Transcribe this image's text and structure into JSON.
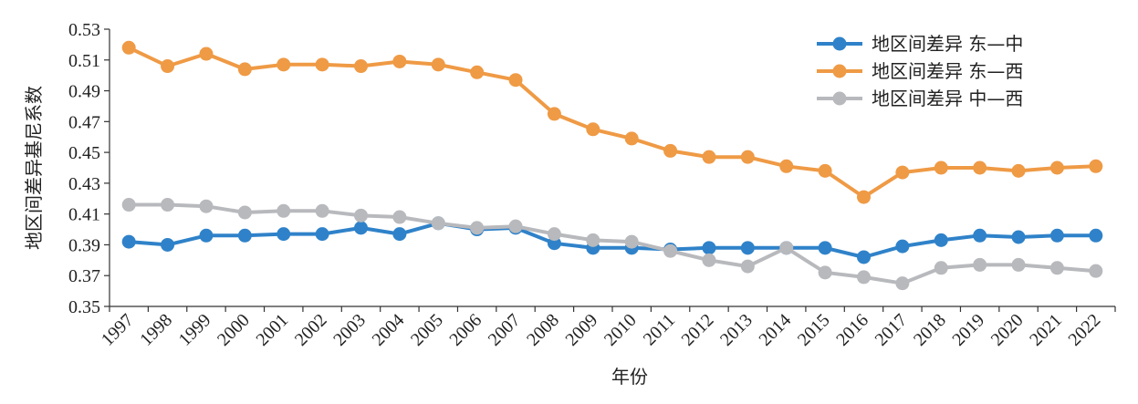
{
  "chart_data": {
    "type": "line",
    "title": "",
    "xlabel": "年份",
    "ylabel": "地区间差异基尼系数",
    "ylim": [
      0.35,
      0.53
    ],
    "yticks": [
      "0.35",
      "0.37",
      "0.39",
      "0.41",
      "0.43",
      "0.45",
      "0.47",
      "0.49",
      "0.51",
      "0.53"
    ],
    "grid": false,
    "legend_position": "top-right",
    "x": [
      "1997",
      "1998",
      "1999",
      "2000",
      "2001",
      "2002",
      "2003",
      "2004",
      "2005",
      "2006",
      "2007",
      "2008",
      "2009",
      "2010",
      "2011",
      "2012",
      "2013",
      "2014",
      "2015",
      "2016",
      "2017",
      "2018",
      "2019",
      "2020",
      "2021",
      "2022"
    ],
    "series": [
      {
        "name": "地区间差异 东—中",
        "color": "#2f82c9",
        "values": [
          0.392,
          0.39,
          0.396,
          0.396,
          0.397,
          0.397,
          0.401,
          0.397,
          0.404,
          0.4,
          0.401,
          0.391,
          0.388,
          0.388,
          0.387,
          0.388,
          0.388,
          0.388,
          0.388,
          0.382,
          0.389,
          0.393,
          0.396,
          0.395,
          0.396,
          0.396
        ]
      },
      {
        "name": "地区间差异 东—西",
        "color": "#ef9a45",
        "values": [
          0.518,
          0.506,
          0.514,
          0.504,
          0.507,
          0.507,
          0.506,
          0.509,
          0.507,
          0.502,
          0.497,
          0.475,
          0.465,
          0.459,
          0.451,
          0.447,
          0.447,
          0.441,
          0.438,
          0.421,
          0.437,
          0.44,
          0.44,
          0.438,
          0.44,
          0.441
        ]
      },
      {
        "name": "地区间差异 中—西",
        "color": "#b8b9bd",
        "values": [
          0.416,
          0.416,
          0.415,
          0.411,
          0.412,
          0.412,
          0.409,
          0.408,
          0.404,
          0.401,
          0.402,
          0.397,
          0.393,
          0.392,
          0.386,
          0.38,
          0.376,
          0.388,
          0.372,
          0.369,
          0.365,
          0.375,
          0.377,
          0.377,
          0.375,
          0.373
        ]
      }
    ]
  }
}
